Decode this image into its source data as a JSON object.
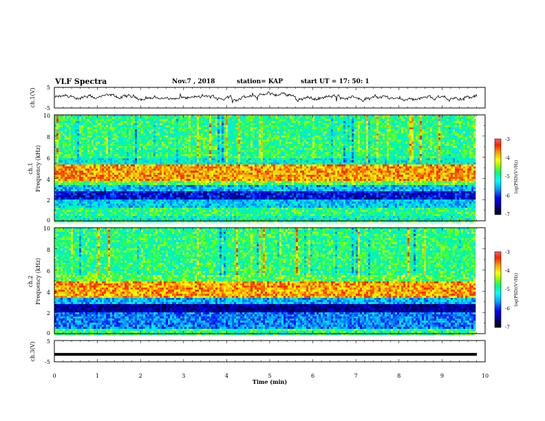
{
  "header": {
    "title": "VLF Spectra",
    "date": "Nov.7 , 2018",
    "station": "station= KAP",
    "start": "start UT = 17: 50: 1"
  },
  "chart_data": [
    {
      "type": "line",
      "panel": "ch1-waveform",
      "ylabel": "ch.1(V)",
      "ylim": [
        -5,
        5
      ],
      "yticks": [
        "5",
        "-5"
      ],
      "xlim": [
        0,
        10
      ],
      "description_values": {
        "baseline_mean": 0,
        "typical_range": [
          -2,
          2
        ]
      },
      "color": "#000000"
    },
    {
      "type": "heatmap",
      "panel": "ch1-spectrogram",
      "ylabel": "ch.1\nFrequency (kHz)",
      "ylabel_line1": "ch.1",
      "ylabel_line2": "Frequency (kHz)",
      "ylim": [
        0,
        10
      ],
      "yticks": [
        "0",
        "2",
        "4",
        "6",
        "8",
        "10"
      ],
      "xlim": [
        0,
        9.8
      ],
      "colorbar": {
        "label": "log(PSD)(V²/Hz)",
        "range": [
          -7,
          -3
        ],
        "ticks": [
          "-3",
          "-4",
          "-5",
          "-6",
          "-7"
        ]
      },
      "bands": [
        {
          "from": 0.0,
          "to": 0.5,
          "level": -5.2
        },
        {
          "from": 0.5,
          "to": 1.2,
          "level": -5.0
        },
        {
          "from": 1.2,
          "to": 2.0,
          "level": -5.5
        },
        {
          "from": 2.0,
          "to": 2.8,
          "level": -6.3
        },
        {
          "from": 2.8,
          "to": 3.3,
          "level": -5.6
        },
        {
          "from": 3.3,
          "to": 3.7,
          "level": -4.8
        },
        {
          "from": 3.7,
          "to": 5.3,
          "level": -4.1
        },
        {
          "from": 5.3,
          "to": 6.0,
          "level": -5.3
        },
        {
          "from": 6.0,
          "to": 10.0,
          "level": -5.0
        }
      ]
    },
    {
      "type": "heatmap",
      "panel": "ch2-spectrogram",
      "ylabel": "ch.2\nFrequency (kHz)",
      "ylabel_line1": "ch.2",
      "ylabel_line2": "Frequency (kHz)",
      "ylim": [
        0,
        10
      ],
      "yticks": [
        "0",
        "2",
        "4",
        "6",
        "8",
        "10"
      ],
      "xlim": [
        0,
        9.8
      ],
      "colorbar": {
        "label": "log(PSD)(V²/Hz)",
        "range": [
          -7,
          -3
        ],
        "ticks": [
          "-3",
          "-4",
          "-5",
          "-6",
          "-7"
        ]
      },
      "bands": [
        {
          "from": 0.0,
          "to": 0.4,
          "level": -5.0
        },
        {
          "from": 0.4,
          "to": 2.0,
          "level": -5.8
        },
        {
          "from": 2.0,
          "to": 2.8,
          "level": -6.6
        },
        {
          "from": 2.8,
          "to": 3.4,
          "level": -5.6
        },
        {
          "from": 3.4,
          "to": 5.0,
          "level": -4.1
        },
        {
          "from": 5.0,
          "to": 5.6,
          "level": -4.8
        },
        {
          "from": 5.6,
          "to": 10.0,
          "level": -5.0
        }
      ]
    },
    {
      "type": "line",
      "panel": "ch3-waveform",
      "ylabel": "ch.3(V)",
      "ylim": [
        -5,
        5
      ],
      "yticks": [
        "5",
        "-5"
      ],
      "xlim": [
        0,
        10
      ],
      "constant_value": -1.5,
      "color": "#000000"
    }
  ],
  "xaxis": {
    "label": "Time (min)",
    "range": [
      0,
      10
    ],
    "ticks": [
      "0",
      "1",
      "2",
      "3",
      "4",
      "5",
      "6",
      "7",
      "8",
      "9",
      "10"
    ]
  },
  "colormap": [
    "#000080",
    "#0000ff",
    "#00aaff",
    "#00ffff",
    "#00ff80",
    "#80ff00",
    "#ffff00",
    "#ffa000",
    "#ff3000",
    "#c00000"
  ]
}
